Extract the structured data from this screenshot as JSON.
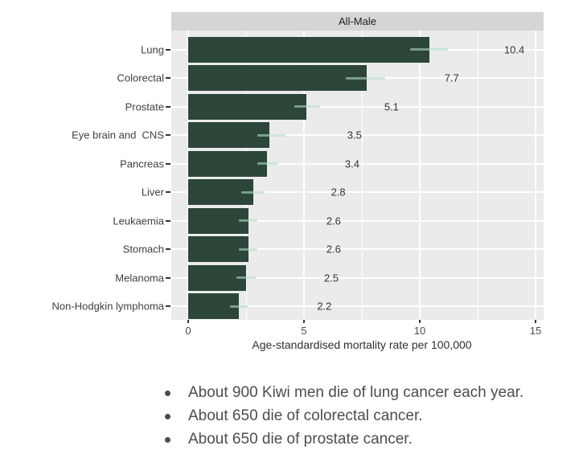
{
  "chart": {
    "facet_label": "All-Male",
    "axis_title": "Age-standardised mortality rate per 100,000",
    "x_ticks": [
      0,
      5,
      10,
      15
    ],
    "x_tick_labels": [
      "0",
      "5",
      "10",
      "15"
    ],
    "x_minor_gridlines": [
      2.5,
      7.5,
      12.5
    ],
    "rows": [
      {
        "label": "Lung",
        "value": 10.4,
        "display": "10.4",
        "ci_low": 9.6,
        "ci_high": 11.2
      },
      {
        "label": "Colorectal",
        "value": 7.7,
        "display": "7.7",
        "ci_low": 6.8,
        "ci_high": 8.5
      },
      {
        "label": "Prostate",
        "value": 5.1,
        "display": "5.1",
        "ci_low": 4.6,
        "ci_high": 5.7
      },
      {
        "label": "Eye brain and  CNS",
        "value": 3.5,
        "display": "3.5",
        "ci_low": 3.0,
        "ci_high": 4.2
      },
      {
        "label": "Pancreas",
        "value": 3.4,
        "display": "3.4",
        "ci_low": 3.0,
        "ci_high": 3.9
      },
      {
        "label": "Liver",
        "value": 2.8,
        "display": "2.8",
        "ci_low": 2.3,
        "ci_high": 3.3
      },
      {
        "label": "Leukaemia",
        "value": 2.6,
        "display": "2.6",
        "ci_low": 2.2,
        "ci_high": 3.0
      },
      {
        "label": "Stomach",
        "value": 2.6,
        "display": "2.6",
        "ci_low": 2.2,
        "ci_high": 3.0
      },
      {
        "label": "Melanoma",
        "value": 2.5,
        "display": "2.5",
        "ci_low": 2.1,
        "ci_high": 2.9
      },
      {
        "label": "Non-Hodgkin lymphoma",
        "value": 2.2,
        "display": "2.2",
        "ci_low": 1.8,
        "ci_high": 2.6
      }
    ],
    "colors": {
      "bar": "#2c4639",
      "panel": "#ebebeb",
      "strip": "#d5d5d5",
      "grid": "#ffffff",
      "error_bar": "rgba(175,216,196,0.6)",
      "text": "#3f3f3f"
    }
  },
  "notes": {
    "bullets": [
      "About 900 Kiwi men die of lung cancer each year.",
      "About 650 die of colorectal cancer.",
      "About 650 die of prostate cancer."
    ]
  },
  "chart_data": {
    "type": "bar",
    "orientation": "horizontal",
    "title": "All-Male",
    "xlabel": "Age-standardised mortality rate per 100,000",
    "ylabel": "",
    "xlim": [
      0,
      15
    ],
    "x_ticks": [
      0,
      5,
      10,
      15
    ],
    "grid": true,
    "legend_position": "none",
    "categories": [
      "Lung",
      "Colorectal",
      "Prostate",
      "Eye brain and  CNS",
      "Pancreas",
      "Liver",
      "Leukaemia",
      "Stomach",
      "Melanoma",
      "Non-Hodgkin lymphoma"
    ],
    "values": [
      10.4,
      7.7,
      5.1,
      3.5,
      3.4,
      2.8,
      2.6,
      2.6,
      2.5,
      2.2
    ],
    "error_low": [
      9.6,
      6.8,
      4.6,
      3.0,
      3.0,
      2.3,
      2.2,
      2.2,
      2.1,
      1.8
    ],
    "error_high": [
      11.2,
      8.5,
      5.7,
      4.2,
      3.9,
      3.3,
      3.0,
      3.0,
      2.9,
      2.6
    ],
    "bar_color": "#2c4639"
  }
}
